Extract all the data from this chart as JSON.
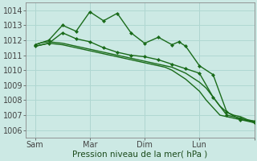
{
  "background_color": "#cce9e4",
  "grid_color": "#b0d8d2",
  "line_color": "#1a6b1a",
  "marker_color": "#1a6b1a",
  "xlabel": "Pression niveau de la mer( hPa )",
  "ylim": [
    1005.5,
    1014.5
  ],
  "yticks": [
    1006,
    1007,
    1008,
    1009,
    1010,
    1011,
    1012,
    1013,
    1014
  ],
  "x_tick_positions": [
    0,
    24,
    48,
    72,
    96
  ],
  "x_tick_labels": [
    "Sam",
    "Mar",
    "Dim",
    "Lun",
    ""
  ],
  "xlim": [
    -4,
    96
  ],
  "series": [
    {
      "x": [
        0,
        3,
        6,
        9,
        12,
        15,
        18,
        21,
        24,
        27,
        30,
        33,
        36,
        39,
        42,
        45,
        48,
        51,
        54,
        57,
        60,
        63,
        66,
        69,
        72,
        75,
        78,
        81,
        84,
        87,
        90,
        93,
        96
      ],
      "y": [
        1011.7,
        1011.85,
        1011.9,
        1011.85,
        1011.8,
        1011.7,
        1011.6,
        1011.5,
        1011.4,
        1011.3,
        1011.2,
        1011.1,
        1011.0,
        1010.9,
        1010.8,
        1010.7,
        1010.6,
        1010.5,
        1010.4,
        1010.3,
        1010.2,
        1010.0,
        1009.8,
        1009.5,
        1009.2,
        1008.8,
        1008.2,
        1007.6,
        1007.2,
        1007.0,
        1006.9,
        1006.7,
        1006.6
      ],
      "has_markers": false,
      "linewidth": 1.0
    },
    {
      "x": [
        0,
        3,
        6,
        9,
        12,
        15,
        18,
        21,
        24,
        27,
        30,
        33,
        36,
        39,
        42,
        45,
        48,
        51,
        54,
        57,
        60,
        63,
        66,
        69,
        72,
        75,
        78,
        81,
        84,
        87,
        90,
        93,
        96
      ],
      "y": [
        1011.6,
        1011.7,
        1011.8,
        1011.75,
        1011.7,
        1011.6,
        1011.5,
        1011.4,
        1011.3,
        1011.2,
        1011.1,
        1011.0,
        1010.9,
        1010.8,
        1010.7,
        1010.6,
        1010.5,
        1010.4,
        1010.3,
        1010.2,
        1010.0,
        1009.7,
        1009.4,
        1009.0,
        1008.6,
        1008.0,
        1007.5,
        1007.0,
        1006.9,
        1006.8,
        1006.7,
        1006.6,
        1006.5
      ],
      "has_markers": false,
      "linewidth": 1.0
    },
    {
      "x": [
        0,
        6,
        12,
        18,
        24,
        30,
        36,
        42,
        48,
        54,
        60,
        63,
        66,
        72,
        78,
        84,
        90,
        96
      ],
      "y": [
        1011.7,
        1012.0,
        1013.0,
        1012.6,
        1013.9,
        1013.3,
        1013.8,
        1012.5,
        1011.8,
        1012.2,
        1011.7,
        1011.9,
        1011.6,
        1010.3,
        1009.7,
        1007.2,
        1006.7,
        1006.6
      ],
      "has_markers": true,
      "linewidth": 1.0
    },
    {
      "x": [
        0,
        6,
        12,
        18,
        24,
        30,
        36,
        42,
        48,
        54,
        60,
        66,
        72,
        78,
        84,
        90,
        96
      ],
      "y": [
        1011.6,
        1011.8,
        1012.5,
        1012.1,
        1011.9,
        1011.5,
        1011.2,
        1011.0,
        1010.9,
        1010.7,
        1010.4,
        1010.1,
        1009.8,
        1008.2,
        1007.0,
        1006.8,
        1006.5
      ],
      "has_markers": true,
      "linewidth": 1.0
    }
  ]
}
